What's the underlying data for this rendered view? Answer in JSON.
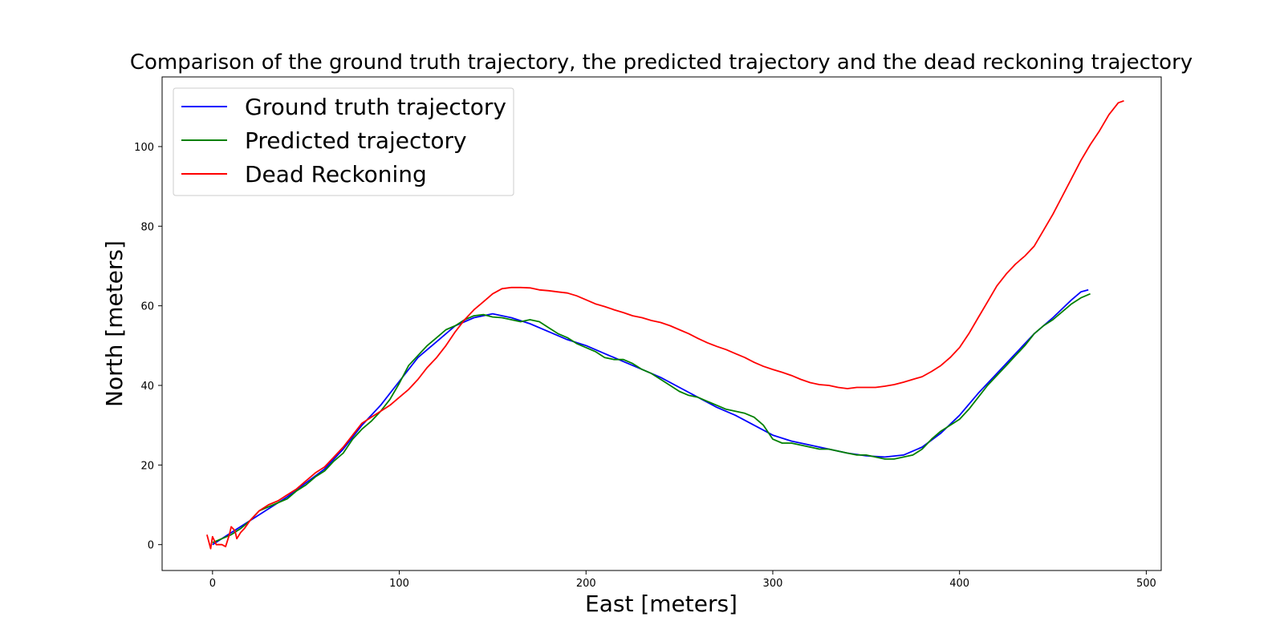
{
  "chart_data": {
    "type": "line",
    "title": "Comparison of the ground truth trajectory, the predicted trajectory and the dead reckoning trajectory",
    "xlabel": "East [meters]",
    "ylabel": "North [meters]",
    "xlim": [
      -27,
      508
    ],
    "ylim": [
      -6.5,
      117.5
    ],
    "xticks": [
      0,
      100,
      200,
      300,
      400,
      500
    ],
    "yticks": [
      0,
      20,
      40,
      60,
      80,
      100
    ],
    "grid": false,
    "legend_position": "upper-left",
    "series": [
      {
        "name": "Ground truth trajectory",
        "color": "#0000ff",
        "points": [
          [
            0,
            0
          ],
          [
            10,
            3
          ],
          [
            20,
            6
          ],
          [
            30,
            9
          ],
          [
            40,
            12
          ],
          [
            50,
            15.5
          ],
          [
            60,
            19
          ],
          [
            70,
            24
          ],
          [
            80,
            30
          ],
          [
            90,
            35
          ],
          [
            100,
            41
          ],
          [
            110,
            47
          ],
          [
            120,
            51
          ],
          [
            130,
            55
          ],
          [
            140,
            57
          ],
          [
            150,
            58
          ],
          [
            160,
            57
          ],
          [
            170,
            55.5
          ],
          [
            180,
            53.5
          ],
          [
            190,
            51.5
          ],
          [
            200,
            50
          ],
          [
            210,
            48
          ],
          [
            220,
            46
          ],
          [
            230,
            44
          ],
          [
            240,
            42
          ],
          [
            250,
            39.5
          ],
          [
            260,
            37
          ],
          [
            270,
            34.5
          ],
          [
            280,
            32.5
          ],
          [
            290,
            30
          ],
          [
            300,
            27.5
          ],
          [
            310,
            26
          ],
          [
            320,
            25
          ],
          [
            330,
            24
          ],
          [
            340,
            23
          ],
          [
            350,
            22.3
          ],
          [
            360,
            22
          ],
          [
            370,
            22.5
          ],
          [
            380,
            24.5
          ],
          [
            390,
            28
          ],
          [
            400,
            32.5
          ],
          [
            410,
            38
          ],
          [
            420,
            43
          ],
          [
            430,
            48
          ],
          [
            440,
            53
          ],
          [
            450,
            57
          ],
          [
            460,
            61.5
          ],
          [
            465,
            63.5
          ],
          [
            469,
            64
          ]
        ]
      },
      {
        "name": "Predicted trajectory",
        "color": "#008000",
        "points": [
          [
            0,
            0.5
          ],
          [
            5,
            1.5
          ],
          [
            10,
            2.5
          ],
          [
            15,
            4
          ],
          [
            20,
            6
          ],
          [
            25,
            8.5
          ],
          [
            30,
            9.5
          ],
          [
            35,
            10.5
          ],
          [
            40,
            11.5
          ],
          [
            45,
            13.5
          ],
          [
            50,
            15
          ],
          [
            55,
            17
          ],
          [
            60,
            18.5
          ],
          [
            65,
            21
          ],
          [
            70,
            23
          ],
          [
            75,
            26.5
          ],
          [
            80,
            29
          ],
          [
            85,
            31
          ],
          [
            90,
            33.5
          ],
          [
            95,
            36.5
          ],
          [
            100,
            40.5
          ],
          [
            105,
            45
          ],
          [
            110,
            47.5
          ],
          [
            115,
            50
          ],
          [
            120,
            52
          ],
          [
            125,
            54
          ],
          [
            130,
            55
          ],
          [
            135,
            56.5
          ],
          [
            140,
            57.5
          ],
          [
            145,
            57.8
          ],
          [
            150,
            57.2
          ],
          [
            155,
            57
          ],
          [
            160,
            56.5
          ],
          [
            165,
            56
          ],
          [
            170,
            56.5
          ],
          [
            175,
            56
          ],
          [
            180,
            54.5
          ],
          [
            185,
            53
          ],
          [
            190,
            52
          ],
          [
            195,
            50.5
          ],
          [
            200,
            49.5
          ],
          [
            205,
            48.5
          ],
          [
            210,
            47
          ],
          [
            215,
            46.5
          ],
          [
            220,
            46.5
          ],
          [
            225,
            45.5
          ],
          [
            230,
            44
          ],
          [
            235,
            43
          ],
          [
            240,
            41.5
          ],
          [
            245,
            40
          ],
          [
            250,
            38.5
          ],
          [
            255,
            37.5
          ],
          [
            260,
            37
          ],
          [
            265,
            36
          ],
          [
            270,
            35
          ],
          [
            275,
            34
          ],
          [
            280,
            33.5
          ],
          [
            285,
            33
          ],
          [
            290,
            32
          ],
          [
            295,
            30
          ],
          [
            300,
            26.5
          ],
          [
            305,
            25.5
          ],
          [
            310,
            25.5
          ],
          [
            315,
            25
          ],
          [
            320,
            24.5
          ],
          [
            325,
            24
          ],
          [
            330,
            24
          ],
          [
            335,
            23.5
          ],
          [
            340,
            23
          ],
          [
            345,
            22.5
          ],
          [
            350,
            22.5
          ],
          [
            355,
            22
          ],
          [
            360,
            21.5
          ],
          [
            365,
            21.5
          ],
          [
            370,
            22
          ],
          [
            375,
            22.5
          ],
          [
            380,
            24
          ],
          [
            385,
            26.5
          ],
          [
            390,
            28.5
          ],
          [
            395,
            30
          ],
          [
            400,
            31.5
          ],
          [
            405,
            34
          ],
          [
            410,
            37
          ],
          [
            415,
            40
          ],
          [
            420,
            42.5
          ],
          [
            425,
            45
          ],
          [
            430,
            47.5
          ],
          [
            435,
            50
          ],
          [
            440,
            53
          ],
          [
            445,
            55
          ],
          [
            450,
            56.5
          ],
          [
            455,
            58.5
          ],
          [
            460,
            60.5
          ],
          [
            465,
            62
          ],
          [
            470,
            63
          ]
        ]
      },
      {
        "name": "Dead Reckoning",
        "color": "#ff0000",
        "points": [
          [
            -3,
            2.5
          ],
          [
            -1,
            -1
          ],
          [
            0,
            2
          ],
          [
            2,
            0
          ],
          [
            5,
            0
          ],
          [
            7,
            -0.5
          ],
          [
            9,
            2.5
          ],
          [
            10,
            4.5
          ],
          [
            12,
            3.5
          ],
          [
            13,
            1.5
          ],
          [
            15,
            3
          ],
          [
            17,
            4
          ],
          [
            20,
            6
          ],
          [
            25,
            8.5
          ],
          [
            30,
            10
          ],
          [
            35,
            11
          ],
          [
            40,
            12.5
          ],
          [
            45,
            14
          ],
          [
            50,
            16
          ],
          [
            55,
            18
          ],
          [
            60,
            19.5
          ],
          [
            65,
            22
          ],
          [
            70,
            24.5
          ],
          [
            75,
            27.5
          ],
          [
            80,
            30.5
          ],
          [
            85,
            32
          ],
          [
            90,
            33.5
          ],
          [
            95,
            35
          ],
          [
            100,
            37
          ],
          [
            105,
            39
          ],
          [
            110,
            41.5
          ],
          [
            115,
            44.5
          ],
          [
            120,
            47
          ],
          [
            125,
            50
          ],
          [
            130,
            53.5
          ],
          [
            135,
            56.5
          ],
          [
            140,
            59
          ],
          [
            145,
            61
          ],
          [
            150,
            63
          ],
          [
            155,
            64.3
          ],
          [
            160,
            64.6
          ],
          [
            165,
            64.6
          ],
          [
            170,
            64.5
          ],
          [
            175,
            64
          ],
          [
            180,
            63.8
          ],
          [
            185,
            63.5
          ],
          [
            190,
            63.2
          ],
          [
            195,
            62.5
          ],
          [
            200,
            61.5
          ],
          [
            205,
            60.5
          ],
          [
            210,
            59.8
          ],
          [
            215,
            59
          ],
          [
            220,
            58.3
          ],
          [
            225,
            57.5
          ],
          [
            230,
            57
          ],
          [
            235,
            56.3
          ],
          [
            240,
            55.8
          ],
          [
            245,
            55
          ],
          [
            250,
            54
          ],
          [
            255,
            53
          ],
          [
            260,
            51.8
          ],
          [
            265,
            50.7
          ],
          [
            270,
            49.8
          ],
          [
            275,
            49
          ],
          [
            280,
            48
          ],
          [
            285,
            47
          ],
          [
            290,
            45.8
          ],
          [
            295,
            44.8
          ],
          [
            300,
            44
          ],
          [
            305,
            43.3
          ],
          [
            310,
            42.5
          ],
          [
            315,
            41.5
          ],
          [
            320,
            40.7
          ],
          [
            325,
            40.2
          ],
          [
            330,
            40
          ],
          [
            335,
            39.5
          ],
          [
            340,
            39.2
          ],
          [
            345,
            39.5
          ],
          [
            350,
            39.5
          ],
          [
            355,
            39.5
          ],
          [
            360,
            39.8
          ],
          [
            365,
            40.2
          ],
          [
            370,
            40.8
          ],
          [
            375,
            41.5
          ],
          [
            380,
            42.2
          ],
          [
            385,
            43.5
          ],
          [
            390,
            45
          ],
          [
            395,
            47
          ],
          [
            400,
            49.5
          ],
          [
            405,
            53
          ],
          [
            410,
            57
          ],
          [
            415,
            61
          ],
          [
            420,
            65
          ],
          [
            425,
            68
          ],
          [
            430,
            70.5
          ],
          [
            435,
            72.5
          ],
          [
            440,
            75
          ],
          [
            445,
            79
          ],
          [
            450,
            83
          ],
          [
            455,
            87.5
          ],
          [
            460,
            92
          ],
          [
            465,
            96.5
          ],
          [
            470,
            100.5
          ],
          [
            475,
            104
          ],
          [
            480,
            108
          ],
          [
            485,
            111
          ],
          [
            488,
            111.5
          ]
        ]
      }
    ]
  }
}
